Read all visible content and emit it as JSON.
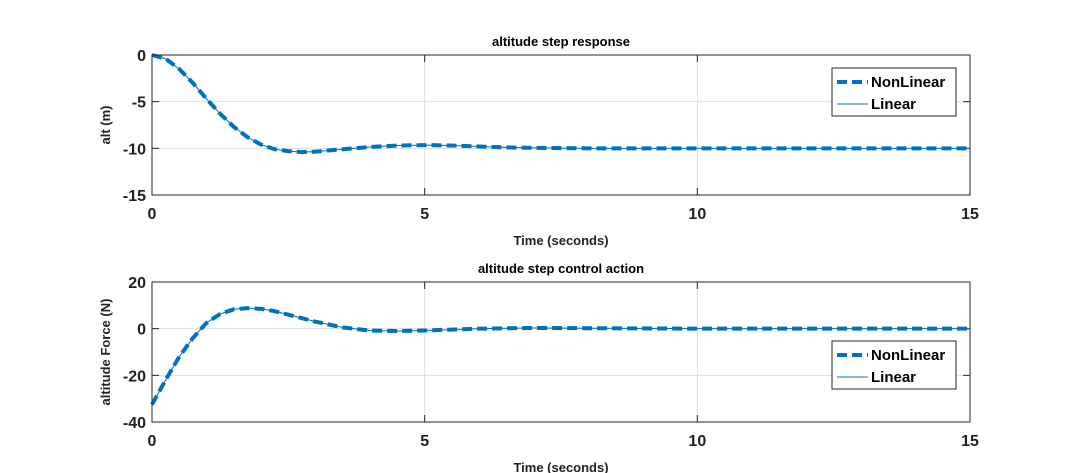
{
  "chart_data": [
    {
      "type": "line",
      "title": "altitude step response",
      "xlabel": "Time (seconds)",
      "ylabel": "alt (m)",
      "xlim": [
        0,
        15
      ],
      "ylim": [
        -15,
        0
      ],
      "xticks": [
        0,
        5,
        10,
        15
      ],
      "yticks": [
        0,
        -5,
        -10,
        -15
      ],
      "grid": true,
      "legend_position": "top-right",
      "series": [
        {
          "name": "NonLinear",
          "style": "dashed",
          "color": "#0072BD",
          "x": [
            0,
            0.25,
            0.5,
            0.75,
            1.0,
            1.25,
            1.5,
            1.75,
            2.0,
            2.25,
            2.5,
            2.75,
            3.0,
            3.5,
            4.0,
            4.5,
            5.0,
            5.5,
            6.0,
            6.5,
            7.0,
            8.0,
            9.0,
            10.0,
            11.0,
            12.0,
            13.0,
            14.0,
            15.0
          ],
          "y": [
            0,
            -0.4,
            -1.5,
            -3.0,
            -4.7,
            -6.3,
            -7.7,
            -8.8,
            -9.6,
            -10.1,
            -10.3,
            -10.4,
            -10.35,
            -10.1,
            -9.85,
            -9.7,
            -9.65,
            -9.7,
            -9.8,
            -9.9,
            -9.95,
            -10.0,
            -10.0,
            -10.0,
            -10.0,
            -10.0,
            -10.0,
            -10.0,
            -10.0
          ]
        },
        {
          "name": "Linear",
          "style": "solid",
          "color": "#0072BD",
          "x": [
            0,
            0.25,
            0.5,
            0.75,
            1.0,
            1.25,
            1.5,
            1.75,
            2.0,
            2.25,
            2.5,
            2.75,
            3.0,
            3.5,
            4.0,
            4.5,
            5.0,
            5.5,
            6.0,
            6.5,
            7.0,
            8.0,
            9.0,
            10.0,
            11.0,
            12.0,
            13.0,
            14.0,
            15.0
          ],
          "y": [
            0,
            -0.4,
            -1.5,
            -3.0,
            -4.7,
            -6.3,
            -7.7,
            -8.8,
            -9.6,
            -10.1,
            -10.3,
            -10.4,
            -10.35,
            -10.1,
            -9.85,
            -9.7,
            -9.65,
            -9.7,
            -9.8,
            -9.9,
            -9.95,
            -10.0,
            -10.0,
            -10.0,
            -10.0,
            -10.0,
            -10.0,
            -10.0,
            -10.0
          ]
        }
      ]
    },
    {
      "type": "line",
      "title": "altitude step control action",
      "xlabel": "Time (seconds)",
      "ylabel": "altitude Force (N)",
      "xlim": [
        0,
        15
      ],
      "ylim": [
        -40,
        20
      ],
      "xticks": [
        0,
        5,
        10,
        15
      ],
      "yticks": [
        20,
        0,
        -20,
        -40
      ],
      "grid": true,
      "legend_position": "bottom-right",
      "series": [
        {
          "name": "NonLinear",
          "style": "dashed",
          "color": "#0072BD",
          "x": [
            0,
            0.25,
            0.5,
            0.75,
            1.0,
            1.25,
            1.5,
            1.75,
            2.0,
            2.25,
            2.5,
            3.0,
            3.5,
            4.0,
            4.5,
            5.0,
            5.5,
            6.0,
            7.0,
            8.0,
            9.0,
            10.0,
            11.0,
            12.0,
            13.0,
            14.0,
            15.0
          ],
          "y": [
            -32.5,
            -22.0,
            -12.0,
            -4.0,
            2.5,
            6.3,
            8.3,
            8.8,
            8.5,
            7.5,
            6.0,
            3.0,
            0.5,
            -0.8,
            -1.0,
            -0.8,
            -0.4,
            0.0,
            0.3,
            0.2,
            0.1,
            0.0,
            0.0,
            0.0,
            0.0,
            0.0,
            0.0
          ]
        },
        {
          "name": "Linear",
          "style": "solid",
          "color": "#0072BD",
          "x": [
            0,
            0.25,
            0.5,
            0.75,
            1.0,
            1.25,
            1.5,
            1.75,
            2.0,
            2.25,
            2.5,
            3.0,
            3.5,
            4.0,
            4.5,
            5.0,
            5.5,
            6.0,
            7.0,
            8.0,
            9.0,
            10.0,
            11.0,
            12.0,
            13.0,
            14.0,
            15.0
          ],
          "y": [
            -32.5,
            -22.0,
            -12.0,
            -4.0,
            2.5,
            6.3,
            8.3,
            8.8,
            8.5,
            7.5,
            6.0,
            3.0,
            0.5,
            -0.8,
            -1.0,
            -0.8,
            -0.4,
            0.0,
            0.3,
            0.2,
            0.1,
            0.0,
            0.0,
            0.0,
            0.0,
            0.0,
            0.0
          ]
        }
      ]
    }
  ]
}
